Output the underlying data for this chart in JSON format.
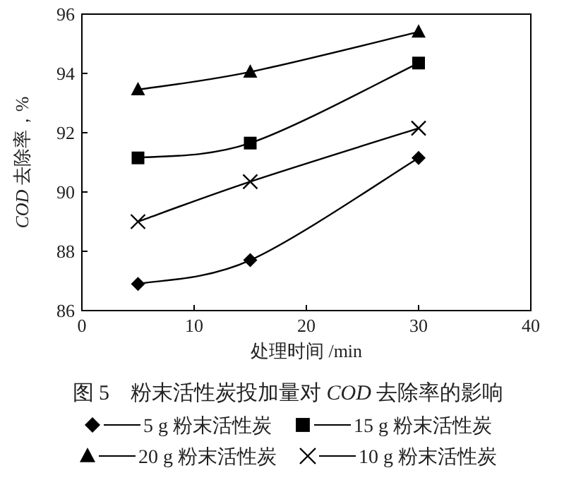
{
  "chart_data": {
    "type": "line",
    "title": "图 5　粉末活性炭投加量对 *COD* 去除率的影响",
    "xlabel": "处理时间 /min",
    "ylabel": "*COD* 去除率，%",
    "xlim": [
      0,
      40
    ],
    "xticks": [
      0,
      10,
      20,
      30,
      40
    ],
    "ylim": [
      86,
      96
    ],
    "yticks": [
      86,
      88,
      90,
      92,
      94,
      96
    ],
    "legend": "bottom",
    "grid": false,
    "series": [
      {
        "name": "5 g 粉末活性炭",
        "color": "#000000",
        "marker": "diamond",
        "x": [
          5,
          15,
          30
        ],
        "values": [
          86.9,
          87.7,
          91.15
        ]
      },
      {
        "name": "15 g 粉末活性炭",
        "color": "#000000",
        "marker": "square",
        "x": [
          5,
          15,
          30
        ],
        "values": [
          91.15,
          91.65,
          94.35
        ]
      },
      {
        "name": "20 g 粉末活性炭",
        "color": "#000000",
        "marker": "triangle",
        "x": [
          5,
          15,
          30
        ],
        "values": [
          93.45,
          94.05,
          95.4
        ]
      },
      {
        "name": "10 g 粉末活性炭",
        "color": "#000000",
        "marker": "cross",
        "x": [
          5,
          15,
          30
        ],
        "values": [
          89.0,
          90.35,
          92.15
        ]
      }
    ]
  }
}
